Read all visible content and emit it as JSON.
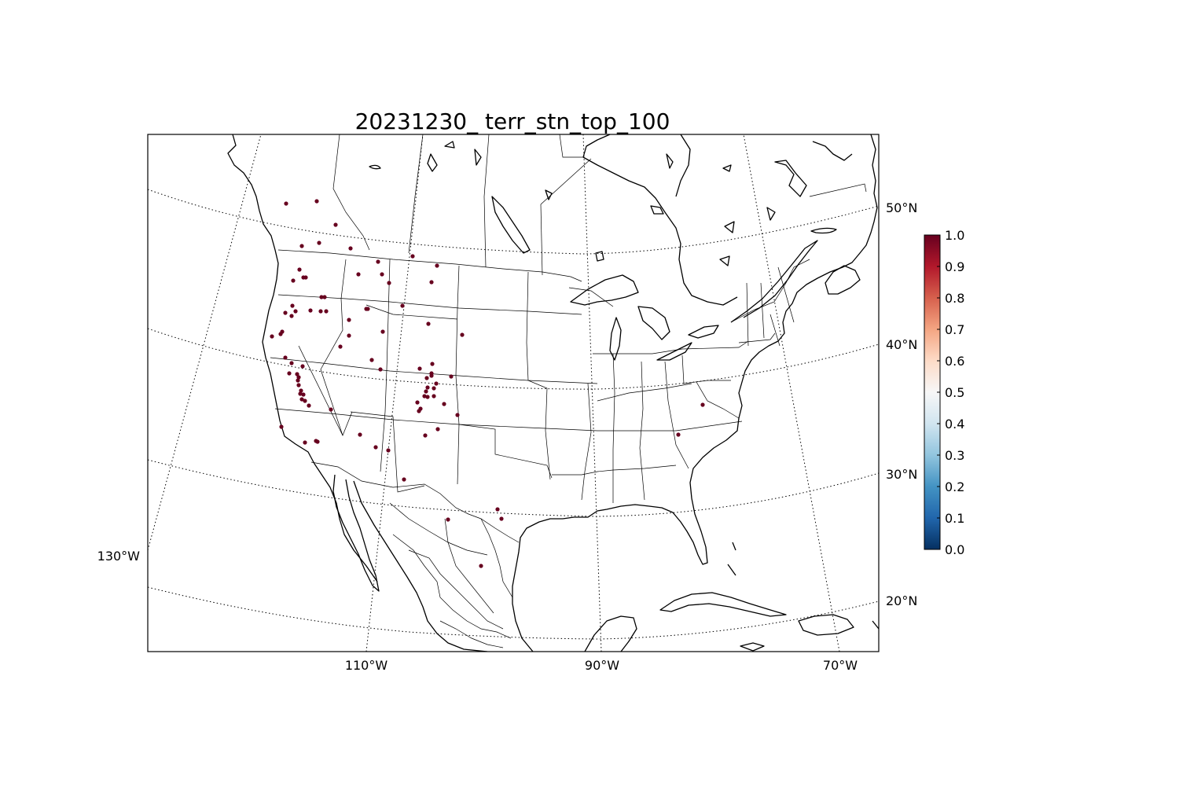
{
  "map": {
    "title": "20231230_ terr_stn_top_100",
    "lat_labels": [
      "50°N",
      "40°N",
      "30°N",
      "20°N"
    ],
    "lon_labels": [
      "130°W",
      "110°W",
      "90°W",
      "70°W"
    ],
    "station_color": "#67001f"
  },
  "colorbar": {
    "ticks": [
      "0.0",
      "0.1",
      "0.2",
      "0.3",
      "0.4",
      "0.5",
      "0.6",
      "0.7",
      "0.8",
      "0.9",
      "1.0"
    ],
    "colors": [
      "#053061",
      "#2166ac",
      "#4393c3",
      "#92c5de",
      "#d1e5f0",
      "#f7f7f7",
      "#fddbc7",
      "#f4a582",
      "#d6604d",
      "#b2182b",
      "#67001f"
    ]
  }
}
